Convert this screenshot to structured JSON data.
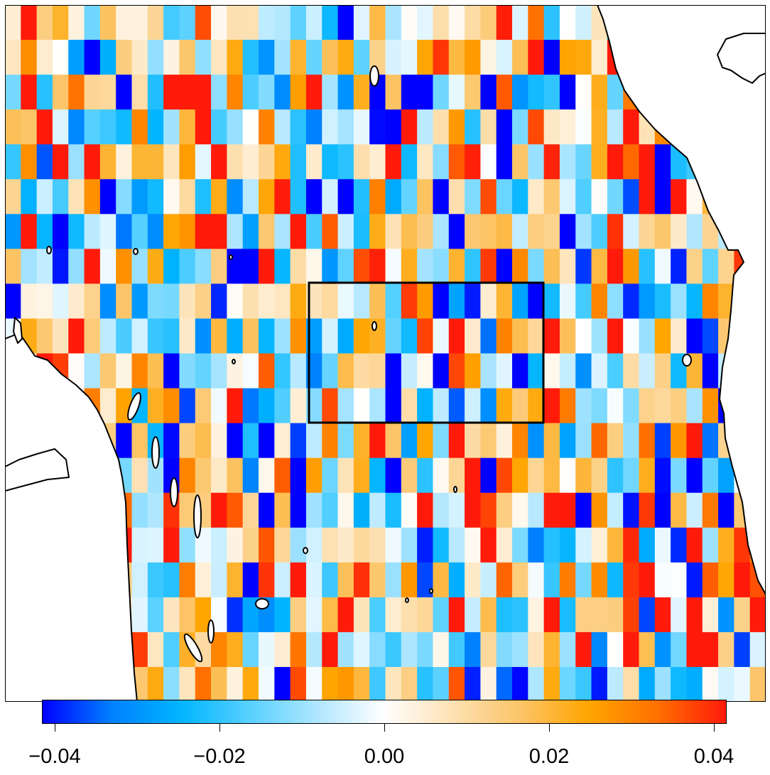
{
  "map": {
    "layer": "gridded anomaly field",
    "projection": "equirectangular",
    "ncols": 48,
    "nrows": 20,
    "coastline_color": "#000000",
    "box_color": "#000000",
    "land_color": "#ffffff"
  },
  "colorbar": {
    "min": -0.042,
    "max": 0.042,
    "colors": [
      "#0000ff",
      "#0080ff",
      "#00b4ff",
      "#55d0ff",
      "#aee6ff",
      "#ffffff",
      "#fde1b3",
      "#fcc466",
      "#ffa500",
      "#ff7000",
      "#ff1a0a"
    ],
    "ticks": [
      {
        "value": -0.04,
        "label": "−0.04"
      },
      {
        "value": -0.02,
        "label": "−0.02"
      },
      {
        "value": 0.0,
        "label": "0.00"
      },
      {
        "value": 0.02,
        "label": "0.02"
      },
      {
        "value": 0.04,
        "label": "0.04"
      }
    ]
  }
}
